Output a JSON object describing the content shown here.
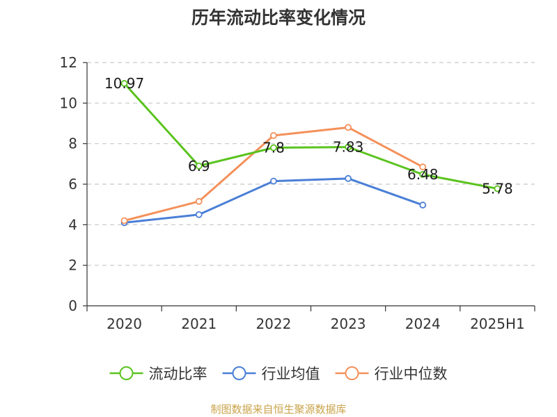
{
  "chart_data": {
    "type": "line",
    "title": "历年流动比率变化情况",
    "categories": [
      "2020",
      "2021",
      "2022",
      "2023",
      "2024",
      "2025H1"
    ],
    "ylim": [
      0,
      12
    ],
    "yticks": [
      0,
      2,
      4,
      6,
      8,
      10,
      12
    ],
    "grid": true,
    "legend_position": "bottom",
    "series": [
      {
        "name": "流动比率",
        "color": "#5ac31e",
        "values": [
          10.97,
          6.9,
          7.8,
          7.83,
          6.48,
          5.78
        ],
        "labels": [
          "10.97",
          "6.9",
          "7.8",
          "7.83",
          "6.48",
          "5.78"
        ]
      },
      {
        "name": "行业均值",
        "color": "#4a7fd6",
        "values": [
          4.1,
          4.5,
          6.15,
          6.28,
          4.97,
          null
        ]
      },
      {
        "name": "行业中位数",
        "color": "#f4905a",
        "values": [
          4.2,
          5.15,
          8.4,
          8.8,
          6.85,
          null
        ]
      }
    ]
  },
  "source_note": "制图数据来自恒生聚源数据库"
}
